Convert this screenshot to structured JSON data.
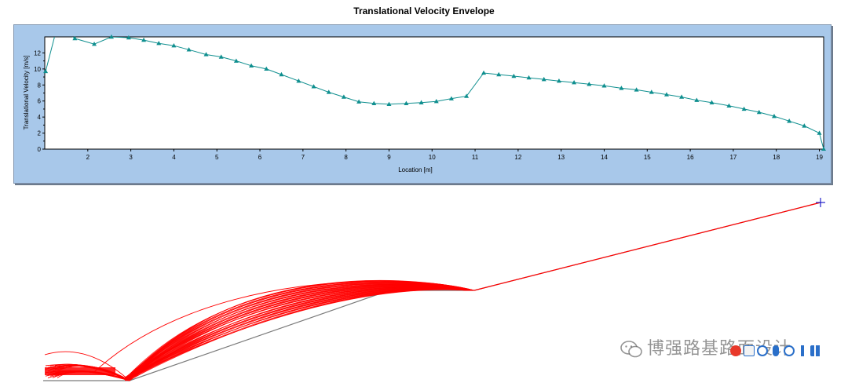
{
  "chart_data": {
    "type": "line",
    "title": "Translational Velocity Envelope",
    "xlabel": "Location [m]",
    "ylabel": "Translational Velocity [m/s]",
    "xlim": [
      1.0,
      19.1
    ],
    "ylim": [
      0,
      14
    ],
    "xticks": [
      "2",
      "3",
      "4",
      "5",
      "6",
      "7",
      "8",
      "9",
      "10",
      "11",
      "12",
      "13",
      "14",
      "15",
      "16",
      "17",
      "18",
      "19"
    ],
    "yticks": [
      "0",
      "2",
      "4",
      "6",
      "8",
      "10",
      "12"
    ],
    "series": [
      {
        "color": "#0f8f8f",
        "marker": "triangle",
        "x": [
          1.02,
          1.3,
          1.7,
          2.15,
          2.55,
          2.95,
          3.3,
          3.65,
          4.0,
          4.35,
          4.75,
          5.1,
          5.45,
          5.8,
          6.15,
          6.5,
          6.9,
          7.25,
          7.6,
          7.95,
          8.3,
          8.65,
          9.0,
          9.4,
          9.75,
          10.1,
          10.45,
          10.8,
          11.2,
          11.55,
          11.9,
          12.25,
          12.6,
          12.95,
          13.3,
          13.65,
          14.0,
          14.4,
          14.75,
          15.1,
          15.45,
          15.8,
          16.15,
          16.5,
          16.9,
          17.25,
          17.6,
          17.95,
          18.3,
          18.65,
          19.0
        ],
        "y": [
          9.7,
          15.5,
          13.8,
          13.1,
          14.0,
          13.9,
          13.6,
          13.2,
          12.9,
          12.4,
          11.8,
          11.5,
          11.0,
          10.4,
          10.0,
          9.3,
          8.5,
          7.8,
          7.1,
          6.5,
          5.9,
          5.7,
          5.6,
          5.7,
          5.8,
          5.95,
          6.3,
          6.6,
          9.5,
          9.3,
          9.1,
          8.9,
          8.7,
          8.5,
          8.3,
          8.1,
          7.9,
          7.6,
          7.4,
          7.1,
          6.8,
          6.5,
          6.1,
          5.8,
          5.4,
          5.0,
          4.6,
          4.1,
          3.5,
          2.9,
          2.0
        ]
      }
    ],
    "grid": false,
    "legend": "none"
  },
  "terrain": {
    "slope_color": "#7a7a7a",
    "path_color": "#ff0000",
    "endpoint_marker_color": "#2222cc"
  },
  "watermark": {
    "text": "博强路基路面设计",
    "icon": "wechat-icon"
  },
  "toolbar": {
    "icons": [
      "logo-icon",
      "save-icon",
      "help-icon",
      "mic-icon",
      "emoji-icon",
      "up-arrow-icon",
      "grid-icon"
    ]
  }
}
